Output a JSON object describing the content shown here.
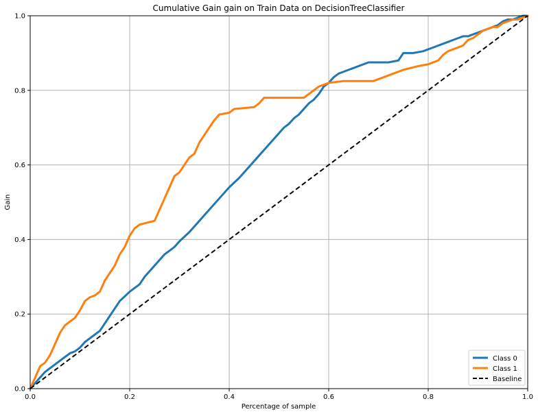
{
  "chart_data": {
    "type": "line",
    "title": "Cumulative Gain gain on Train Data on DecisionTreeClassifier",
    "xlabel": "Percentage of sample",
    "ylabel": "Gain",
    "xlim": [
      0,
      1
    ],
    "ylim": [
      0,
      1
    ],
    "grid": true,
    "legend_position": "lower-right",
    "x_ticks": [
      "0.0",
      "0.2",
      "0.4",
      "0.6",
      "0.8",
      "1.0"
    ],
    "y_ticks": [
      "0.0",
      "0.2",
      "0.4",
      "0.6",
      "0.8",
      "1.0"
    ],
    "colors": {
      "class0": "#1f77b4",
      "class1": "#ff7f0e",
      "baseline": "#000000",
      "grid": "#b0b0b0"
    },
    "series": [
      {
        "name": "Class 0",
        "style": "solid",
        "x": [
          0.0,
          0.01,
          0.02,
          0.03,
          0.04,
          0.05,
          0.06,
          0.07,
          0.08,
          0.09,
          0.1,
          0.11,
          0.12,
          0.13,
          0.14,
          0.16,
          0.18,
          0.2,
          0.22,
          0.23,
          0.25,
          0.27,
          0.29,
          0.3,
          0.32,
          0.33,
          0.34,
          0.35,
          0.36,
          0.38,
          0.4,
          0.42,
          0.43,
          0.45,
          0.47,
          0.49,
          0.51,
          0.52,
          0.53,
          0.54,
          0.55,
          0.56,
          0.57,
          0.58,
          0.59,
          0.6,
          0.61,
          0.62,
          0.63,
          0.64,
          0.65,
          0.66,
          0.67,
          0.68,
          0.7,
          0.72,
          0.74,
          0.75,
          0.77,
          0.79,
          0.8,
          0.81,
          0.82,
          0.83,
          0.84,
          0.85,
          0.86,
          0.87,
          0.88,
          0.89,
          0.9,
          0.91,
          0.92,
          0.93,
          0.94,
          0.95,
          0.96,
          0.97,
          0.98,
          0.99,
          1.0
        ],
        "y": [
          0.0,
          0.015,
          0.03,
          0.045,
          0.055,
          0.065,
          0.075,
          0.085,
          0.095,
          0.1,
          0.11,
          0.125,
          0.135,
          0.145,
          0.155,
          0.195,
          0.235,
          0.26,
          0.28,
          0.3,
          0.33,
          0.36,
          0.38,
          0.395,
          0.42,
          0.435,
          0.45,
          0.465,
          0.48,
          0.51,
          0.54,
          0.565,
          0.58,
          0.61,
          0.64,
          0.67,
          0.7,
          0.71,
          0.725,
          0.735,
          0.75,
          0.765,
          0.775,
          0.79,
          0.81,
          0.82,
          0.835,
          0.845,
          0.85,
          0.855,
          0.86,
          0.865,
          0.87,
          0.875,
          0.875,
          0.875,
          0.88,
          0.9,
          0.9,
          0.905,
          0.91,
          0.915,
          0.92,
          0.925,
          0.93,
          0.935,
          0.94,
          0.945,
          0.945,
          0.95,
          0.955,
          0.96,
          0.965,
          0.97,
          0.975,
          0.985,
          0.99,
          0.99,
          0.995,
          1.0,
          1.0
        ]
      },
      {
        "name": "Class 1",
        "style": "solid",
        "x": [
          0.0,
          0.01,
          0.02,
          0.03,
          0.04,
          0.05,
          0.06,
          0.07,
          0.08,
          0.09,
          0.1,
          0.11,
          0.12,
          0.13,
          0.14,
          0.15,
          0.16,
          0.17,
          0.18,
          0.19,
          0.2,
          0.21,
          0.22,
          0.25,
          0.26,
          0.27,
          0.28,
          0.29,
          0.3,
          0.31,
          0.32,
          0.33,
          0.34,
          0.35,
          0.36,
          0.37,
          0.38,
          0.4,
          0.41,
          0.45,
          0.46,
          0.47,
          0.5,
          0.55,
          0.56,
          0.57,
          0.58,
          0.6,
          0.63,
          0.66,
          0.69,
          0.72,
          0.75,
          0.78,
          0.8,
          0.82,
          0.83,
          0.84,
          0.85,
          0.86,
          0.87,
          0.88,
          0.89,
          0.9,
          0.91,
          0.92,
          0.93,
          0.94,
          0.95,
          0.96,
          0.97,
          0.98,
          1.0
        ],
        "y": [
          0.0,
          0.03,
          0.06,
          0.07,
          0.09,
          0.12,
          0.15,
          0.17,
          0.18,
          0.19,
          0.21,
          0.235,
          0.245,
          0.25,
          0.26,
          0.29,
          0.31,
          0.33,
          0.36,
          0.38,
          0.41,
          0.43,
          0.44,
          0.45,
          0.48,
          0.51,
          0.54,
          0.57,
          0.58,
          0.6,
          0.62,
          0.63,
          0.66,
          0.68,
          0.7,
          0.72,
          0.735,
          0.74,
          0.75,
          0.755,
          0.765,
          0.78,
          0.78,
          0.78,
          0.79,
          0.8,
          0.81,
          0.82,
          0.825,
          0.825,
          0.825,
          0.84,
          0.855,
          0.865,
          0.87,
          0.88,
          0.895,
          0.905,
          0.91,
          0.915,
          0.92,
          0.935,
          0.94,
          0.95,
          0.96,
          0.965,
          0.97,
          0.97,
          0.98,
          0.985,
          0.99,
          0.99,
          1.0
        ]
      },
      {
        "name": "Baseline",
        "style": "dashed",
        "x": [
          0.0,
          1.0
        ],
        "y": [
          0.0,
          1.0
        ]
      }
    ]
  }
}
